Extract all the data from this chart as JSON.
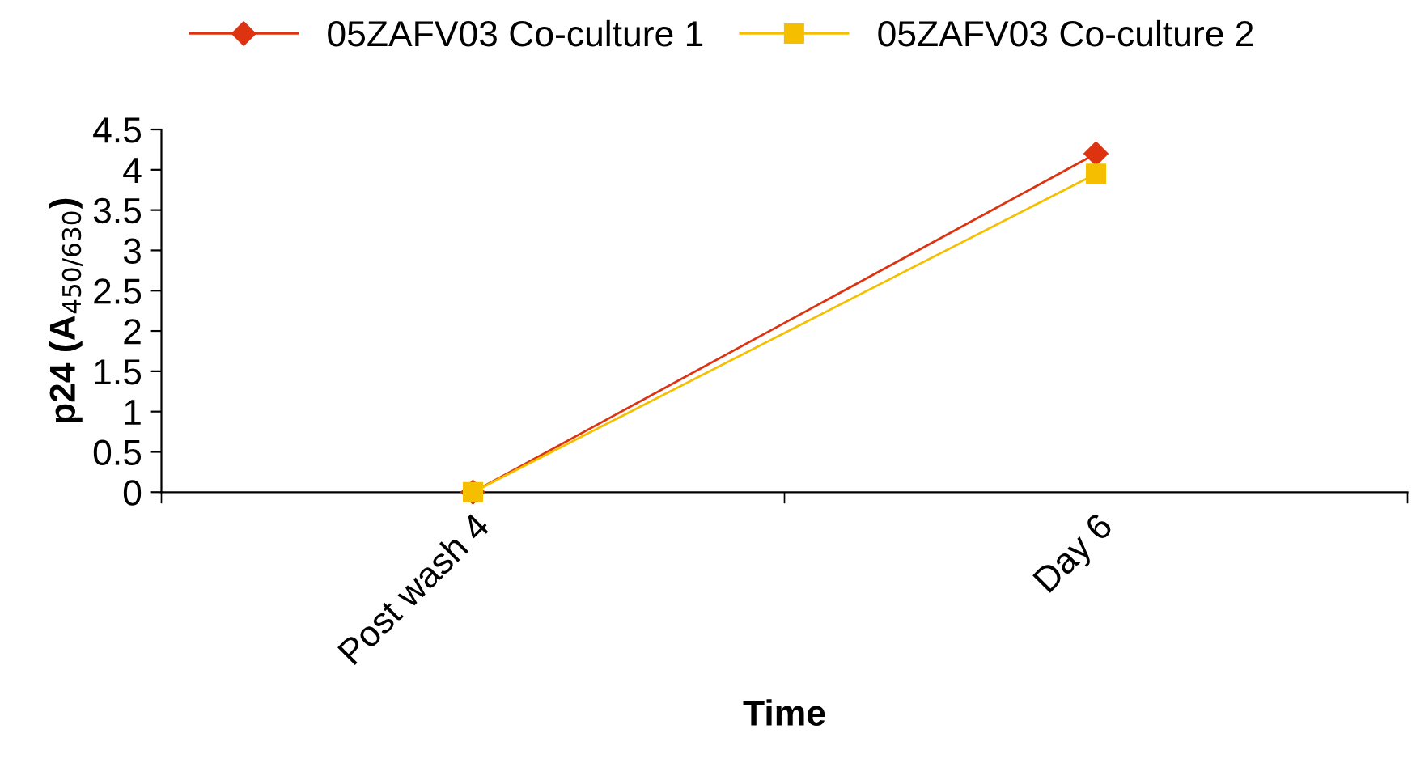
{
  "chart_data": {
    "type": "line",
    "xlabel": "Time",
    "ylabel": "p24 (A$_{450/630}$)",
    "categories": [
      "Post wash 4",
      "Day 6"
    ],
    "series": [
      {
        "name": "05ZAFV03 Co-culture 1",
        "color": "#dd3311",
        "values": [
          0.0,
          4.2
        ],
        "marker": "diamond"
      },
      {
        "name": "05ZAFV03 Co-culture 2",
        "color": "#f5bf00",
        "values": [
          0.0,
          3.95
        ],
        "marker": "square"
      }
    ],
    "ylim": [
      0,
      4.5
    ],
    "yticks": [
      0,
      0.5,
      1,
      1.5,
      2,
      2.5,
      3,
      3.5,
      4,
      4.5
    ],
    "grid": false,
    "legend": "top",
    "line_style": "solid"
  }
}
